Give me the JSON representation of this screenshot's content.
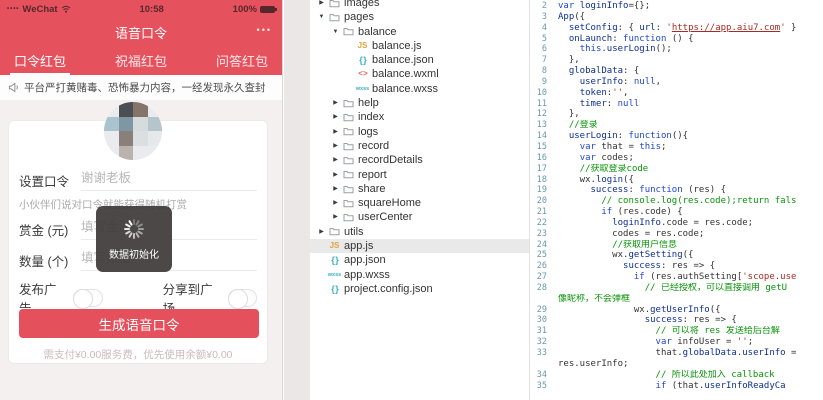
{
  "phone": {
    "status": {
      "dots": "••••",
      "carrier": "WeChat",
      "time": "10:58",
      "battery": "100%"
    },
    "nav": {
      "title": "语音口令",
      "menu_dots": "•••"
    },
    "tabs": [
      {
        "label": "口令红包"
      },
      {
        "label": "祝福红包"
      },
      {
        "label": "问答红包"
      }
    ],
    "notice": "平台严打黄赌毒、恐怖暴力内容，一经发现永久查封",
    "form": {
      "password_label": "设置口令",
      "password_placeholder": "谢谢老板",
      "hint": "小伙伴们说对口令就能获得随机打赏",
      "amount_label": "赏金 (元)",
      "amount_placeholder": "填写金额",
      "count_label": "数量 (个)",
      "count_placeholder": "填写数量",
      "publish_ad_label": "发布广告",
      "share_square_label": "分享到广场",
      "submit_label": "生成语音口令",
      "fee_note": "需支付¥0.00服务费，优先使用余额¥0.00"
    },
    "toast": {
      "text": "数据初始化"
    },
    "accent_color": "#e5515c"
  },
  "tree": {
    "items": [
      {
        "label": "images",
        "level": 0,
        "type": "folder",
        "expanded": false
      },
      {
        "label": "pages",
        "level": 0,
        "type": "folder",
        "expanded": true
      },
      {
        "label": "balance",
        "level": 1,
        "type": "folder",
        "expanded": true
      },
      {
        "label": "balance.js",
        "level": 2,
        "type": "file",
        "icon": "js"
      },
      {
        "label": "balance.json",
        "level": 2,
        "type": "file",
        "icon": "json"
      },
      {
        "label": "balance.wxml",
        "level": 2,
        "type": "file",
        "icon": "wxml"
      },
      {
        "label": "balance.wxss",
        "level": 2,
        "type": "file",
        "icon": "wxss"
      },
      {
        "label": "help",
        "level": 1,
        "type": "folder",
        "expanded": false
      },
      {
        "label": "index",
        "level": 1,
        "type": "folder",
        "expanded": false
      },
      {
        "label": "logs",
        "level": 1,
        "type": "folder",
        "expanded": false
      },
      {
        "label": "record",
        "level": 1,
        "type": "folder",
        "expanded": false
      },
      {
        "label": "recordDetails",
        "level": 1,
        "type": "folder",
        "expanded": false
      },
      {
        "label": "report",
        "level": 1,
        "type": "folder",
        "expanded": false
      },
      {
        "label": "share",
        "level": 1,
        "type": "folder",
        "expanded": false
      },
      {
        "label": "squareHome",
        "level": 1,
        "type": "folder",
        "expanded": false
      },
      {
        "label": "userCenter",
        "level": 1,
        "type": "folder",
        "expanded": false
      },
      {
        "label": "utils",
        "level": 0,
        "type": "folder",
        "expanded": false
      },
      {
        "label": "app.js",
        "level": 0,
        "type": "file",
        "icon": "js",
        "selected": true
      },
      {
        "label": "app.json",
        "level": 0,
        "type": "file",
        "icon": "json"
      },
      {
        "label": "app.wxss",
        "level": 0,
        "type": "file",
        "icon": "wxss"
      },
      {
        "label": "project.config.json",
        "level": 0,
        "type": "file",
        "icon": "json"
      }
    ]
  },
  "editor": {
    "lines": [
      {
        "n": "2",
        "segs": [
          [
            "k",
            "var"
          ],
          [
            "d",
            " "
          ],
          [
            "p",
            "loginInfo"
          ],
          [
            "d",
            "={};"
          ]
        ]
      },
      {
        "n": "3",
        "segs": [
          [
            "p",
            "App"
          ],
          [
            "d",
            "({"
          ]
        ]
      },
      {
        "n": "4",
        "segs": [
          [
            "d",
            "  "
          ],
          [
            "p",
            "setConfig"
          ],
          [
            "d",
            ": { "
          ],
          [
            "p",
            "url"
          ],
          [
            "d",
            ": "
          ],
          [
            "s",
            "'"
          ],
          [
            "u",
            "https://app.aiu7.com"
          ],
          [
            "s",
            "'"
          ],
          [
            "d",
            " }"
          ]
        ]
      },
      {
        "n": "5",
        "segs": [
          [
            "d",
            "  "
          ],
          [
            "p",
            "onLaunch"
          ],
          [
            "d",
            ": "
          ],
          [
            "k",
            "function"
          ],
          [
            "d",
            " () {"
          ]
        ]
      },
      {
        "n": "6",
        "segs": [
          [
            "d",
            "    "
          ],
          [
            "k",
            "this"
          ],
          [
            "d",
            "."
          ],
          [
            "p",
            "userLogin"
          ],
          [
            "d",
            "();"
          ]
        ]
      },
      {
        "n": "7",
        "segs": [
          [
            "d",
            "  },"
          ]
        ]
      },
      {
        "n": "8",
        "segs": [
          [
            "d",
            "  "
          ],
          [
            "p",
            "globalData"
          ],
          [
            "d",
            ": {"
          ]
        ]
      },
      {
        "n": "9",
        "segs": [
          [
            "d",
            "    "
          ],
          [
            "p",
            "userInfo"
          ],
          [
            "d",
            ": "
          ],
          [
            "k",
            "null"
          ],
          [
            "d",
            ","
          ]
        ]
      },
      {
        "n": "10",
        "segs": [
          [
            "d",
            "    "
          ],
          [
            "p",
            "token"
          ],
          [
            "d",
            ":"
          ],
          [
            "s",
            "''"
          ],
          [
            "d",
            ","
          ]
        ]
      },
      {
        "n": "11",
        "segs": [
          [
            "d",
            "    "
          ],
          [
            "p",
            "timer"
          ],
          [
            "d",
            ": "
          ],
          [
            "k",
            "null"
          ]
        ]
      },
      {
        "n": "12",
        "segs": [
          [
            "d",
            "  },"
          ]
        ]
      },
      {
        "n": "13",
        "segs": [
          [
            "d",
            "  "
          ],
          [
            "c",
            "//登录"
          ]
        ]
      },
      {
        "n": "14",
        "segs": [
          [
            "d",
            "  "
          ],
          [
            "p",
            "userLogin"
          ],
          [
            "d",
            ": "
          ],
          [
            "k",
            "function"
          ],
          [
            "d",
            "(){"
          ]
        ]
      },
      {
        "n": "15",
        "segs": [
          [
            "d",
            "    "
          ],
          [
            "k",
            "var"
          ],
          [
            "d",
            " that = "
          ],
          [
            "k",
            "this"
          ],
          [
            "d",
            ";"
          ]
        ]
      },
      {
        "n": "16",
        "segs": [
          [
            "d",
            "    "
          ],
          [
            "k",
            "var"
          ],
          [
            "d",
            " codes;"
          ]
        ]
      },
      {
        "n": "17",
        "segs": [
          [
            "d",
            "    "
          ],
          [
            "c",
            "//获取登录code"
          ]
        ]
      },
      {
        "n": "18",
        "segs": [
          [
            "d",
            "    wx."
          ],
          [
            "p",
            "login"
          ],
          [
            "d",
            "({"
          ]
        ]
      },
      {
        "n": "19",
        "segs": [
          [
            "d",
            "      "
          ],
          [
            "p",
            "success"
          ],
          [
            "d",
            ": "
          ],
          [
            "k",
            "function"
          ],
          [
            "d",
            " (res) {"
          ]
        ]
      },
      {
        "n": "20",
        "segs": [
          [
            "d",
            "        "
          ],
          [
            "c",
            "// console.log(res.code);return fals"
          ]
        ]
      },
      {
        "n": "21",
        "segs": [
          [
            "d",
            "        "
          ],
          [
            "k",
            "if"
          ],
          [
            "d",
            " (res.code) {"
          ]
        ]
      },
      {
        "n": "22",
        "segs": [
          [
            "d",
            "          "
          ],
          [
            "p",
            "loginInfo"
          ],
          [
            "d",
            ".code = res.code;"
          ]
        ]
      },
      {
        "n": "23",
        "segs": [
          [
            "d",
            "          codes = res.code;"
          ]
        ]
      },
      {
        "n": "24",
        "segs": [
          [
            "d",
            "          "
          ],
          [
            "c",
            "//获取用户信息"
          ]
        ]
      },
      {
        "n": "25",
        "segs": [
          [
            "d",
            "          wx."
          ],
          [
            "p",
            "getSetting"
          ],
          [
            "d",
            "({"
          ]
        ]
      },
      {
        "n": "26",
        "segs": [
          [
            "d",
            "            "
          ],
          [
            "p",
            "success"
          ],
          [
            "d",
            ": res => {"
          ]
        ]
      },
      {
        "n": "27",
        "segs": [
          [
            "d",
            "              "
          ],
          [
            "k",
            "if"
          ],
          [
            "d",
            " (res.authSetting["
          ],
          [
            "s",
            "'scope.use"
          ]
        ]
      },
      {
        "n": "28",
        "segs": [
          [
            "d",
            "                "
          ],
          [
            "c",
            "// 已经授权，可以直接调用 getU"
          ]
        ]
      },
      {
        "n": "",
        "segs": [
          [
            "c",
            "像昵称，不会弹框"
          ]
        ]
      },
      {
        "n": "29",
        "segs": [
          [
            "d",
            "              wx."
          ],
          [
            "p",
            "getUserInfo"
          ],
          [
            "d",
            "({"
          ]
        ]
      },
      {
        "n": "30",
        "segs": [
          [
            "d",
            "                "
          ],
          [
            "p",
            "success"
          ],
          [
            "d",
            ": res => {"
          ]
        ]
      },
      {
        "n": "31",
        "segs": [
          [
            "d",
            "                  "
          ],
          [
            "c",
            "// 可以将 res 发送给后台解"
          ]
        ]
      },
      {
        "n": "32",
        "segs": [
          [
            "d",
            "                  "
          ],
          [
            "k",
            "var"
          ],
          [
            "d",
            " infoUser = "
          ],
          [
            "s",
            "''"
          ],
          [
            "d",
            ";"
          ]
        ]
      },
      {
        "n": "33",
        "segs": [
          [
            "d",
            "                  that."
          ],
          [
            "p",
            "globalData"
          ],
          [
            "d",
            "."
          ],
          [
            "p",
            "userInfo"
          ],
          [
            "d",
            " ="
          ]
        ]
      },
      {
        "n": "",
        "segs": [
          [
            "d",
            "res.userInfo;"
          ]
        ]
      },
      {
        "n": "34",
        "segs": [
          [
            "d",
            "                  "
          ],
          [
            "c",
            "// 所以此处加入 callback"
          ]
        ]
      },
      {
        "n": "35",
        "segs": [
          [
            "d",
            "                  "
          ],
          [
            "k",
            "if"
          ],
          [
            "d",
            " (that."
          ],
          [
            "p",
            "userInfoReadyCa"
          ]
        ]
      }
    ]
  }
}
